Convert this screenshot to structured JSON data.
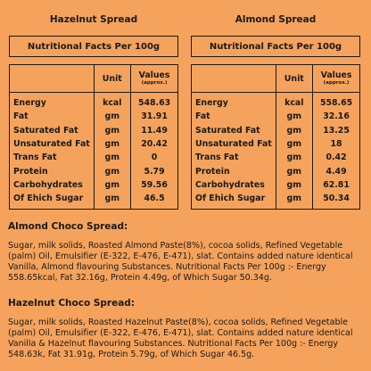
{
  "left_panel": {
    "title": "Hazelnut Spread",
    "box_title": "Nutritional Facts Per 100g",
    "header": {
      "unit": "Unit",
      "values": "Values",
      "approx": "(approx.)"
    },
    "rows": [
      {
        "nutrient": "Energy",
        "unit": "kcal",
        "value": "548.63"
      },
      {
        "nutrient": "Fat",
        "unit": "gm",
        "value": "31.91"
      },
      {
        "nutrient": "Saturated Fat",
        "unit": "gm",
        "value": "11.49"
      },
      {
        "nutrient": "Unsaturated Fat",
        "unit": "gm",
        "value": "20.42"
      },
      {
        "nutrient": "Trans Fat",
        "unit": "gm",
        "value": "0"
      },
      {
        "nutrient": "Protein",
        "unit": "gm",
        "value": "5.79"
      },
      {
        "nutrient": "Carbohydrates",
        "unit": "gm",
        "value": "59.56"
      },
      {
        "nutrient": "Of Ehich Sugar",
        "unit": "gm",
        "value": "46.5"
      }
    ]
  },
  "right_panel": {
    "title": "Almond Spread",
    "box_title": "Nutritional Facts Per 100g",
    "header": {
      "unit": "Unit",
      "values": "Values",
      "approx": "(approx.)"
    },
    "rows": [
      {
        "nutrient": "Energy",
        "unit": "kcal",
        "value": "558.65"
      },
      {
        "nutrient": "Fat",
        "unit": "gm",
        "value": "32.16"
      },
      {
        "nutrient": "Saturated Fat",
        "unit": "gm",
        "value": "13.25"
      },
      {
        "nutrient": "Unsaturated Fat",
        "unit": "gm",
        "value": "18"
      },
      {
        "nutrient": "Trans Fat",
        "unit": "gm",
        "value": "0.42"
      },
      {
        "nutrient": "Protein",
        "unit": "gm",
        "value": "4.49"
      },
      {
        "nutrient": "Carbohydrates",
        "unit": "gm",
        "value": "62.81"
      },
      {
        "nutrient": "Of Ehich Sugar",
        "unit": "gm",
        "value": "50.34"
      }
    ]
  },
  "almond_section": {
    "heading": "Almond Choco Spread:",
    "text": "Sugar, milk solids, Roasted Almond Paste(8%), cocoa solids, Refined Vegetable (palm) Oil, Emulsifier (E-322, E-476, E-471), slat. Contains added nature identical Vanilla, Almond flavouring Substances. Nutritional Facts Per 100g :- Energy 558.65kcal, Fat 32.16g, Protein 4.49g, of Which Sugar 50.34g."
  },
  "hazelnut_section": {
    "heading": "Hazelnut Choco Spread:",
    "text": "Sugar, milk solids, Roasted Hazelnut Paste(8%), cocoa solids, Refined Vegetable (palm) Oil, Emulsifier (E-322, E-476, E-471), slat. Contains added nature identical Vanilla & Hazelnut flavouring Substances. Nutritional Facts Per 100g :- Energy 548.63k, Fat 31.91g, Protein 5.79g, of Which Sugar 46.5g."
  }
}
